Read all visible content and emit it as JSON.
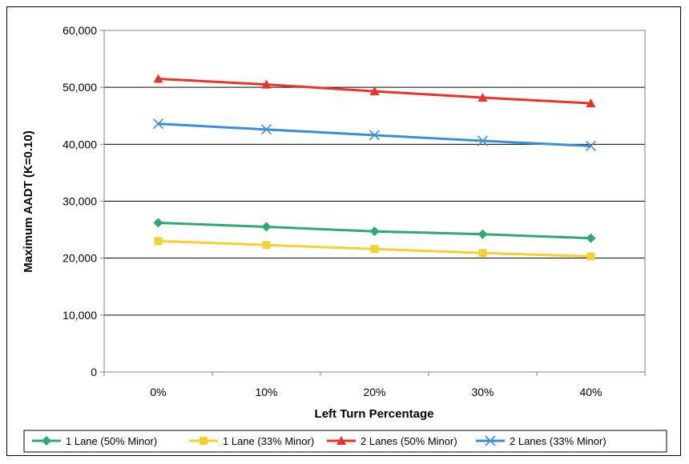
{
  "chart_data": {
    "type": "line",
    "categories": [
      "0%",
      "10%",
      "20%",
      "30%",
      "40%"
    ],
    "xlabel": "Left Turn Percentage",
    "ylabel": "Maximum AADT (K=0.10)",
    "ylim": [
      0,
      60000
    ],
    "yticks": [
      "0",
      "10,000",
      "20,000",
      "30,000",
      "40,000",
      "50,000",
      "60,000"
    ],
    "grid": "horizontal",
    "legend_position": "bottom",
    "series": [
      {
        "name": "1 Lane (50% Minor)",
        "color": "#2eaa6e",
        "marker": "diamond",
        "values": [
          26200,
          25500,
          24700,
          24200,
          23500
        ]
      },
      {
        "name": "1 Lane (33% Minor)",
        "color": "#f5d033",
        "marker": "square",
        "values": [
          23000,
          22300,
          21600,
          20900,
          20300
        ]
      },
      {
        "name": "2 Lanes (50% Minor)",
        "color": "#e8332a",
        "marker": "triangle",
        "values": [
          51500,
          50500,
          49300,
          48200,
          47200
        ]
      },
      {
        "name": "2 Lanes (33% Minor)",
        "color": "#3a8fd4",
        "marker": "x",
        "values": [
          43600,
          42600,
          41600,
          40600,
          39700
        ]
      }
    ]
  }
}
